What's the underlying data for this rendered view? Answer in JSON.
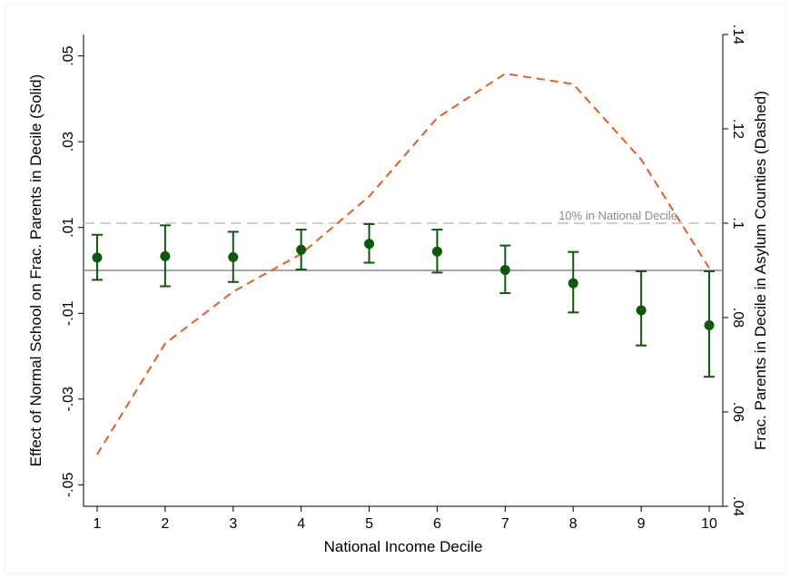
{
  "chart_data": {
    "type": "line",
    "title": "",
    "xlabel": "National Income Decile",
    "ylabel_left": "Effect of Normal School on Frac. Parents in Decile (Solid)",
    "ylabel_right": "Frac. Parents in Decile in Asylum Counties (Dashed)",
    "x": [
      1,
      2,
      3,
      4,
      5,
      6,
      7,
      8,
      9,
      10
    ],
    "x_ticks": [
      "1",
      "2",
      "3",
      "4",
      "5",
      "6",
      "7",
      "8",
      "9",
      "10"
    ],
    "y_left": {
      "range": [
        -0.055,
        0.055
      ],
      "ticks": [
        -0.05,
        -0.03,
        -0.01,
        0.01,
        0.03,
        0.05
      ],
      "tick_labels": [
        "-.05",
        "-.03",
        "-.01",
        ".01",
        ".03",
        ".05"
      ]
    },
    "y_right": {
      "range": [
        0.04,
        0.14
      ],
      "ticks": [
        0.04,
        0.06,
        0.08,
        0.1,
        0.12,
        0.14
      ],
      "tick_labels": [
        ".04",
        ".06",
        ".08",
        ".1",
        ".12",
        ".14"
      ]
    },
    "series": [
      {
        "axis": "left",
        "style": "points-with-95ci",
        "color": "#0b5a0b",
        "values": [
          0.003,
          0.0033,
          0.0031,
          0.0048,
          0.0062,
          0.0044,
          0.0001,
          -0.003,
          -0.0093,
          -0.0128
        ],
        "ci_low": [
          -0.0022,
          -0.0037,
          -0.0027,
          0.0002,
          0.0018,
          -0.0005,
          -0.0053,
          -0.0098,
          -0.0175,
          -0.0248
        ],
        "ci_high": [
          0.0083,
          0.0105,
          0.009,
          0.0095,
          0.0108,
          0.0095,
          0.0058,
          0.0043,
          -0.0002,
          -0.0002
        ]
      },
      {
        "axis": "right",
        "style": "dashed",
        "color": "#f05a1e",
        "values": [
          0.051,
          0.0745,
          0.0855,
          0.0935,
          0.1057,
          0.1223,
          0.1317,
          0.1295,
          0.1135,
          0.0905
        ]
      }
    ],
    "reference_lines": [
      {
        "axis": "left",
        "y": 0,
        "color": "#8c8c8c",
        "style": "solid"
      },
      {
        "axis": "right",
        "y": 0.1,
        "color": "#c0c0c0",
        "style": "dashed",
        "label": "10% in National Decile"
      }
    ],
    "grid": false
  }
}
